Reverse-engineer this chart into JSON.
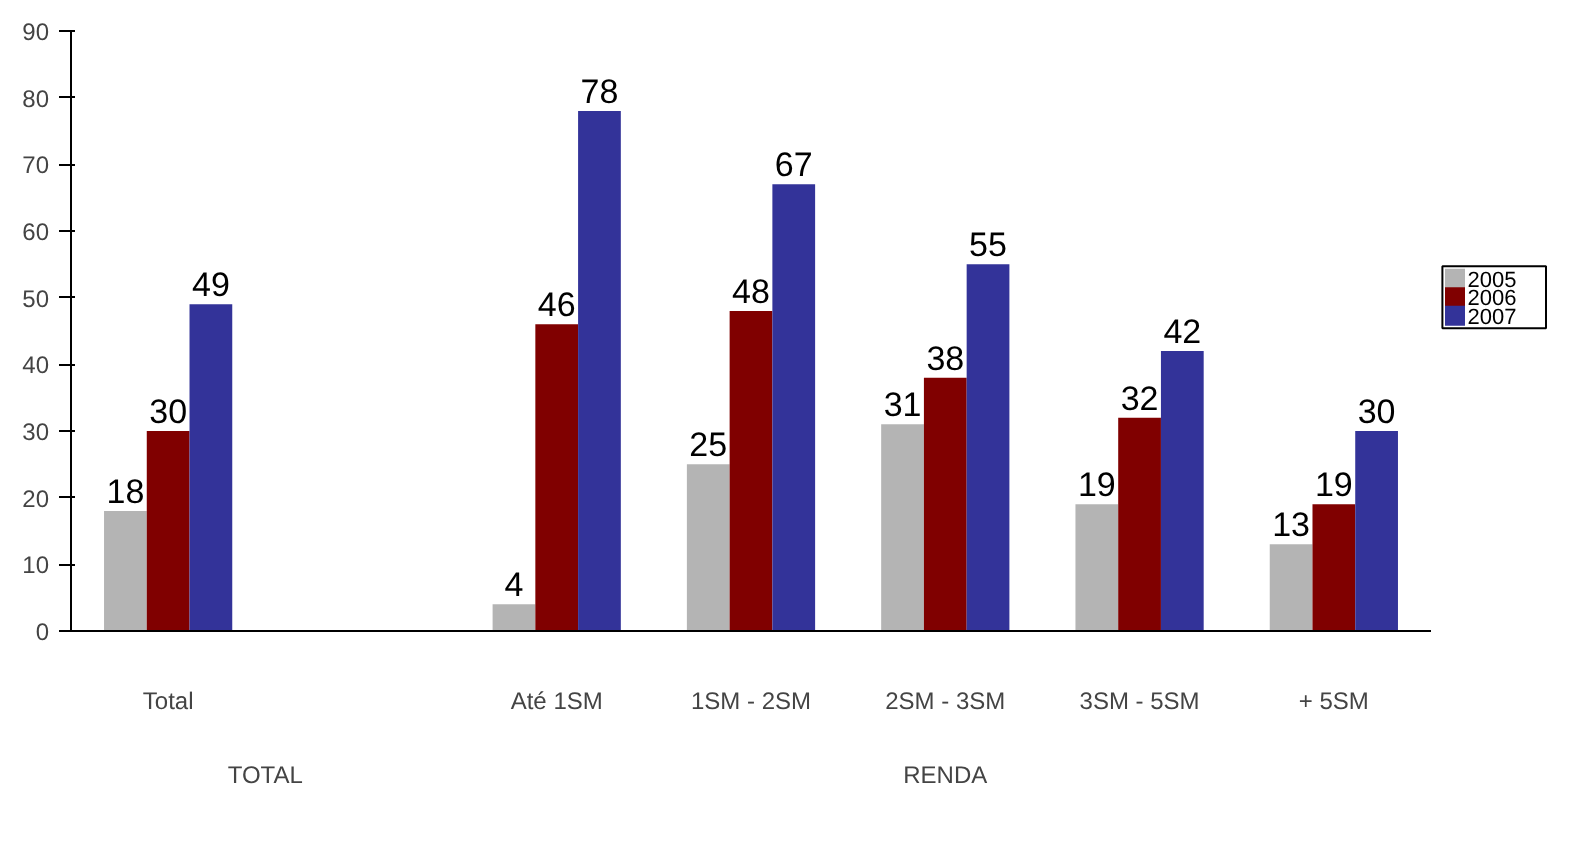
{
  "chart_data": {
    "type": "bar",
    "categories": [
      "Total",
      null,
      "Até 1SM",
      "1SM - 2SM",
      "2SM - 3SM",
      "3SM - 5SM",
      "+ 5SM"
    ],
    "series": [
      {
        "name": "2005",
        "color": "#b4b4b4",
        "values": [
          18,
          null,
          4,
          25,
          31,
          19,
          13
        ]
      },
      {
        "name": "2006",
        "color": "#800000",
        "values": [
          30,
          null,
          46,
          48,
          38,
          32,
          19
        ]
      },
      {
        "name": "2007",
        "color": "#333399",
        "values": [
          49,
          null,
          78,
          67,
          55,
          42,
          30
        ]
      }
    ],
    "ylim": [
      0,
      90
    ],
    "yticks": [
      0,
      10,
      20,
      30,
      40,
      50,
      60,
      70,
      80,
      90
    ],
    "grid": false,
    "legend": "right",
    "data_labels": true,
    "annotations": [
      "TOTAL",
      "RENDA"
    ]
  }
}
